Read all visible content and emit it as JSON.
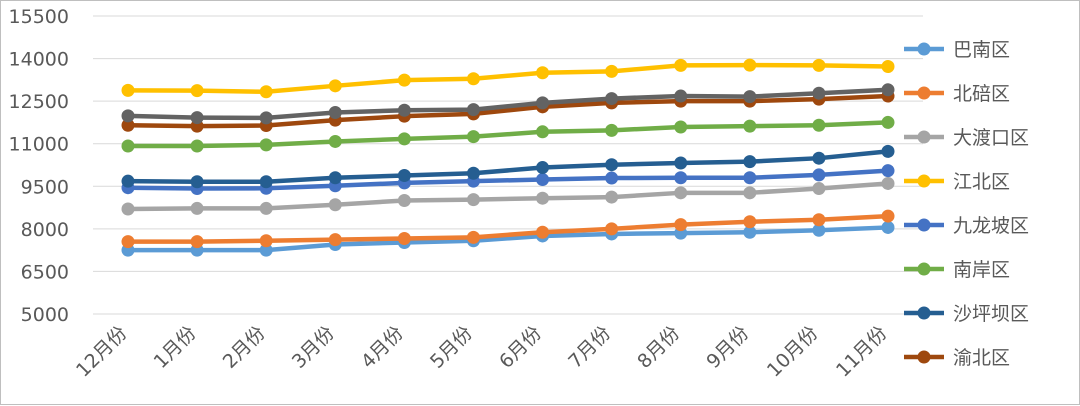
{
  "chart_data": {
    "type": "line",
    "categories": [
      "12月份",
      "1月份",
      "2月份",
      "3月份",
      "4月份",
      "5月份",
      "6月份",
      "7月份",
      "8月份",
      "9月份",
      "10月份",
      "11月份"
    ],
    "ylim": [
      5000,
      15500
    ],
    "yticks": [
      "5000",
      "6500",
      "8000",
      "9500",
      "11000",
      "12500",
      "14000",
      "15500"
    ],
    "grid": true,
    "legend_position": "right",
    "series": [
      {
        "name": "巴南区",
        "color": "#5B9BD5",
        "values": [
          7250,
          7250,
          7250,
          7450,
          7520,
          7580,
          7750,
          7820,
          7850,
          7880,
          7950,
          8050
        ]
      },
      {
        "name": "北碚区",
        "color": "#ED7D31",
        "values": [
          7550,
          7550,
          7580,
          7620,
          7660,
          7700,
          7880,
          8000,
          8150,
          8250,
          8320,
          8450
        ]
      },
      {
        "name": "大渡口区",
        "color": "#A5A5A5",
        "values": [
          8700,
          8720,
          8720,
          8850,
          9000,
          9030,
          9080,
          9120,
          9270,
          9270,
          9420,
          9600
        ]
      },
      {
        "name": "江北区",
        "color": "#FFC000",
        "values": [
          12880,
          12870,
          12830,
          13040,
          13240,
          13290,
          13500,
          13550,
          13760,
          13770,
          13760,
          13720
        ]
      },
      {
        "name": "九龙坡区",
        "color": "#4472C4",
        "values": [
          9450,
          9420,
          9430,
          9520,
          9620,
          9680,
          9740,
          9790,
          9800,
          9800,
          9900,
          10050
        ]
      },
      {
        "name": "南岸区",
        "color": "#70AD47",
        "values": [
          10920,
          10920,
          10960,
          11080,
          11170,
          11250,
          11420,
          11470,
          11590,
          11620,
          11650,
          11750
        ]
      },
      {
        "name": "沙坪坝区",
        "color": "#255E91",
        "values": [
          9680,
          9660,
          9660,
          9800,
          9880,
          9960,
          10160,
          10260,
          10320,
          10370,
          10490,
          10730
        ]
      },
      {
        "name": "渝北区",
        "color": "#9E480E",
        "values": [
          11650,
          11620,
          11640,
          11830,
          11970,
          12050,
          12300,
          12440,
          12500,
          12500,
          12570,
          12680
        ]
      },
      {
        "name": "",
        "color": "#636363",
        "values": [
          11980,
          11920,
          11910,
          12100,
          12180,
          12200,
          12440,
          12590,
          12680,
          12660,
          12780,
          12900
        ]
      }
    ]
  }
}
